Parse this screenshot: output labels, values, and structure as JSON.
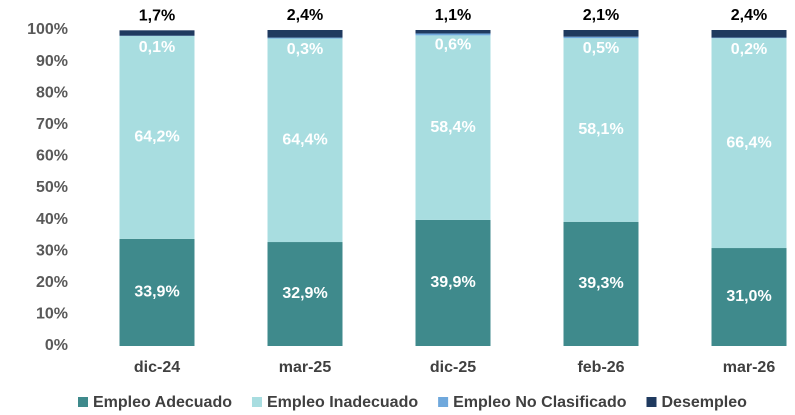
{
  "chart_data": {
    "type": "stacked_bar",
    "categories": [
      "dic-24",
      "mar-25",
      "dic-25",
      "feb-26",
      "mar-26"
    ],
    "series": [
      {
        "name": "Empleo Adecuado",
        "color": "#3f8a8c",
        "values": [
          33.9,
          32.9,
          39.9,
          39.3,
          31.0
        ],
        "value_labels": [
          "33,9%",
          "32,9%",
          "39,9%",
          "39,3%",
          "31,0%"
        ]
      },
      {
        "name": "Empleo Inadecuado",
        "color": "#a8dde0",
        "values": [
          64.2,
          64.4,
          58.4,
          58.1,
          66.4
        ],
        "value_labels": [
          "64,2%",
          "64,4%",
          "58,4%",
          "58,1%",
          "66,4%"
        ]
      },
      {
        "name": "Empleo No Clasificado",
        "color": "#6fa8dc",
        "values": [
          0.1,
          0.3,
          0.6,
          0.5,
          0.2
        ],
        "value_labels": [
          "0,1%",
          "0,3%",
          "0,6%",
          "0,5%",
          "0,2%"
        ]
      },
      {
        "name": "Desempleo",
        "color": "#1f3a5f",
        "values": [
          1.7,
          2.4,
          1.1,
          2.1,
          2.4
        ],
        "value_labels": [
          "1,7%",
          "2,4%",
          "1,1%",
          "2,1%",
          "2,4%"
        ]
      }
    ],
    "ylim": [
      0,
      100
    ],
    "yticks": [
      {
        "value": 0,
        "label": "0%"
      },
      {
        "value": 10,
        "label": "10%"
      },
      {
        "value": 20,
        "label": "20%"
      },
      {
        "value": 30,
        "label": "30%"
      },
      {
        "value": 40,
        "label": "40%"
      },
      {
        "value": 50,
        "label": "50%"
      },
      {
        "value": 60,
        "label": "60%"
      },
      {
        "value": 70,
        "label": "70%"
      },
      {
        "value": 80,
        "label": "80%"
      },
      {
        "value": 90,
        "label": "90%"
      },
      {
        "value": 100,
        "label": "100%"
      }
    ],
    "legend": "bottom"
  }
}
